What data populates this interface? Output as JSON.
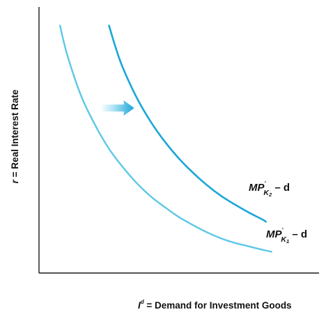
{
  "chart_data": {
    "type": "line",
    "title": "",
    "xlabel_parts": {
      "main": "I",
      "sup": "d",
      "rest": " = Demand for Investment Goods"
    },
    "ylabel_parts": {
      "main": "r",
      "rest": " = Real Interest Rate"
    },
    "xlim": [
      0,
      10
    ],
    "ylim": [
      0,
      10
    ],
    "grid": false,
    "legend": "none",
    "series": [
      {
        "label_parts": {
          "main": "MP",
          "prime": "'",
          "sub": "K",
          "subsub": "1",
          "tail": " – d"
        },
        "color": "#5bc8e6",
        "stroke_width": 2.4,
        "points": [
          [
            0.75,
            9.3
          ],
          [
            1.0,
            8.23
          ],
          [
            1.5,
            6.67
          ],
          [
            2.0,
            5.57
          ],
          [
            2.5,
            4.67
          ],
          [
            3.0,
            3.97
          ],
          [
            3.5,
            3.37
          ],
          [
            4.0,
            2.87
          ],
          [
            4.5,
            2.47
          ],
          [
            5.0,
            2.1
          ],
          [
            5.5,
            1.8
          ],
          [
            6.0,
            1.53
          ],
          [
            6.5,
            1.3
          ],
          [
            7.0,
            1.13
          ],
          [
            7.5,
            1.0
          ],
          [
            8.0,
            0.87
          ],
          [
            8.3,
            0.8
          ]
        ]
      },
      {
        "label_parts": {
          "main": "MP",
          "prime": "'",
          "sub": "K",
          "subsub": "2",
          "tail": " – d"
        },
        "color": "#1ba6d8",
        "stroke_width": 2.6,
        "points": [
          [
            2.5,
            9.3
          ],
          [
            2.75,
            8.43
          ],
          [
            3.0,
            7.7
          ],
          [
            3.5,
            6.57
          ],
          [
            4.0,
            5.67
          ],
          [
            4.5,
            4.93
          ],
          [
            5.0,
            4.3
          ],
          [
            5.5,
            3.77
          ],
          [
            6.0,
            3.3
          ],
          [
            6.5,
            2.9
          ],
          [
            7.0,
            2.57
          ],
          [
            7.5,
            2.27
          ],
          [
            8.0,
            2.0
          ],
          [
            8.1,
            1.93
          ]
        ]
      }
    ],
    "annotation": {
      "type": "arrow",
      "direction": "right",
      "color": "#1ba6d8",
      "from": [
        2.2,
        6.2
      ],
      "to": [
        3.4,
        6.2
      ]
    }
  }
}
